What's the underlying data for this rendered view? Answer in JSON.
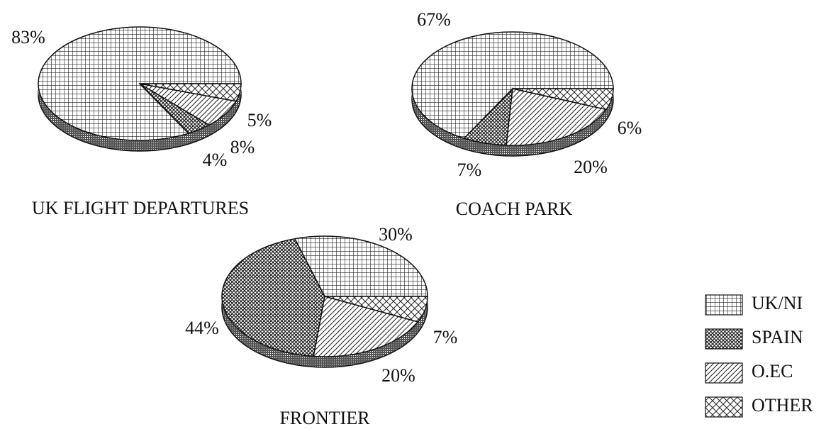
{
  "chart_data": [
    {
      "type": "pie",
      "title": "UK FLIGHT DEPARTURES",
      "values": [
        83,
        4,
        8,
        5
      ],
      "value_labels": [
        "83%",
        "4%",
        "8%",
        "5%"
      ]
    },
    {
      "type": "pie",
      "title": "COACH PARK",
      "values": [
        67,
        7,
        20,
        6
      ],
      "value_labels": [
        "67%",
        "7%",
        "20%",
        "6%"
      ]
    },
    {
      "type": "pie",
      "title": "FRONTIER",
      "values": [
        30,
        44,
        20,
        7
      ],
      "value_labels": [
        "30%",
        "44%",
        "20%",
        "7%"
      ]
    }
  ],
  "legend": {
    "labels": [
      "UK/NI",
      "SPAIN",
      "O.EC",
      "OTHER"
    ]
  }
}
